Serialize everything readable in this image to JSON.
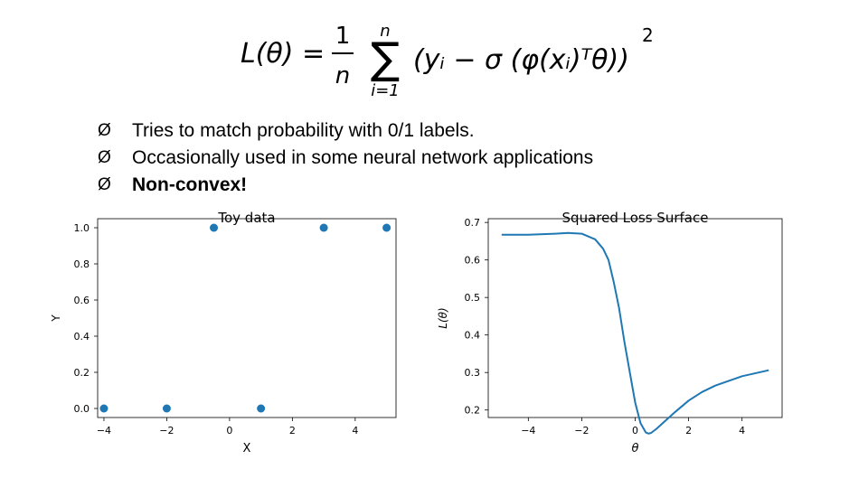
{
  "formula": {
    "lhs": "L(θ) =",
    "frac_num": "1",
    "frac_den": "n",
    "sum_upper": "n",
    "sum_lower": "i=1",
    "body": "(yᵢ − σ (φ(xᵢ)ᵀθ))",
    "power": "2"
  },
  "bullets": [
    {
      "text": "Tries to match probability with 0/1 labels.",
      "bold": false
    },
    {
      "text": "Occasionally used in some neural network applications",
      "bold": false
    },
    {
      "text": "Non-convex!",
      "bold": true
    }
  ],
  "bullet_glyph": "Ø",
  "chart_data": [
    {
      "type": "scatter",
      "title": "Toy data",
      "xlabel": "X",
      "ylabel": "Y",
      "xlim": [
        -4.2,
        5.3
      ],
      "ylim": [
        -0.05,
        1.05
      ],
      "xticks": [
        -4,
        -2,
        0,
        2,
        4
      ],
      "xtick_labels": [
        "−4",
        "−2",
        "0",
        "2",
        "4"
      ],
      "yticks": [
        0.0,
        0.2,
        0.4,
        0.6,
        0.8,
        1.0
      ],
      "ytick_labels": [
        "0.0",
        "0.2",
        "0.4",
        "0.6",
        "0.8",
        "1.0"
      ],
      "points": [
        {
          "x": -4,
          "y": 0
        },
        {
          "x": -2,
          "y": 0
        },
        {
          "x": -0.5,
          "y": 1
        },
        {
          "x": 1,
          "y": 0
        },
        {
          "x": 3,
          "y": 1
        },
        {
          "x": 5,
          "y": 1
        }
      ],
      "color": "#1f77b4",
      "grid": false
    },
    {
      "type": "line",
      "title": "Squared Loss Surface",
      "xlabel": "θ",
      "ylabel": "L(θ)",
      "xlim": [
        -5.5,
        5.5
      ],
      "ylim": [
        0.18,
        0.71
      ],
      "xticks": [
        -4,
        -2,
        0,
        2,
        4
      ],
      "xtick_labels": [
        "−4",
        "−2",
        "0",
        "2",
        "4"
      ],
      "yticks": [
        0.2,
        0.3,
        0.4,
        0.5,
        0.6,
        0.7
      ],
      "ytick_labels": [
        "0.2",
        "0.3",
        "0.4",
        "0.5",
        "0.6",
        "0.7"
      ],
      "x": [
        -5,
        -4,
        -3,
        -2.5,
        -2,
        -1.5,
        -1.2,
        -1,
        -0.8,
        -0.6,
        -0.4,
        -0.2,
        0,
        0.2,
        0.4,
        0.5,
        0.6,
        0.8,
        1,
        1.5,
        2,
        2.5,
        3,
        4,
        5
      ],
      "y": [
        0.667,
        0.667,
        0.67,
        0.672,
        0.67,
        0.655,
        0.63,
        0.6,
        0.54,
        0.47,
        0.38,
        0.3,
        0.22,
        0.165,
        0.14,
        0.137,
        0.139,
        0.15,
        0.163,
        0.195,
        0.225,
        0.248,
        0.265,
        0.29,
        0.306
      ],
      "color": "#1f77b4",
      "grid": false
    }
  ]
}
